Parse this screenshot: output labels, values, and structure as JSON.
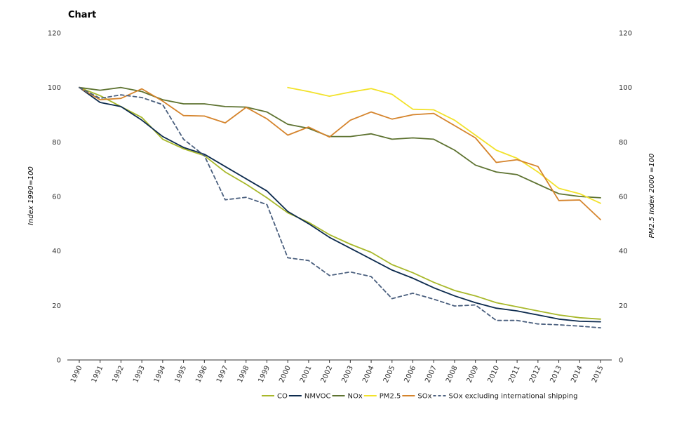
{
  "chart_data": {
    "type": "line",
    "title": "Chart",
    "ylabel_left": "Index 1990=100",
    "ylabel_right": "PM2.5 Index 2000 =100",
    "ylim": [
      0,
      120
    ],
    "yticks": [
      0,
      20,
      40,
      60,
      80,
      100,
      120
    ],
    "x": [
      "1990",
      "1991",
      "1992",
      "1993",
      "1994",
      "1995",
      "1996",
      "1997",
      "1998",
      "1999",
      "2000",
      "2001",
      "2002",
      "2003",
      "2004",
      "2005",
      "2006",
      "2007",
      "2008",
      "2009",
      "2010",
      "2011",
      "2012",
      "2013",
      "2014",
      "2015"
    ],
    "grid": false,
    "legend_position": "bottom",
    "series": [
      {
        "name": "CO",
        "color": "#a8b82a",
        "dash": false,
        "values": [
          100,
          97,
          93,
          89,
          81,
          77.5,
          75,
          69,
          64.5,
          59.5,
          54,
          50.5,
          46,
          42.5,
          39.5,
          35,
          32,
          28.5,
          25.5,
          23.5,
          21,
          19.5,
          18,
          16.5,
          15.5,
          15
        ]
      },
      {
        "name": "NMVOC",
        "color": "#0d2b4e",
        "dash": false,
        "values": [
          100,
          94.5,
          93,
          88,
          82,
          78,
          75.5,
          71,
          66.5,
          62,
          54.5,
          50,
          45,
          41,
          37,
          33,
          30,
          26.5,
          23.5,
          21,
          19,
          18,
          16.5,
          15,
          14.2,
          14
        ]
      },
      {
        "name": "NOx",
        "color": "#5e7331",
        "dash": false,
        "values": [
          100,
          99,
          100,
          98.5,
          95.5,
          94,
          94,
          93,
          92.8,
          91,
          86.5,
          85,
          82,
          82,
          83,
          81,
          81.5,
          81,
          77,
          71.5,
          69,
          68,
          64.5,
          61,
          60,
          59.5
        ]
      },
      {
        "name": "PM2.5",
        "color": "#f2e22b",
        "dash": false,
        "values": [
          null,
          null,
          null,
          null,
          null,
          null,
          null,
          null,
          null,
          null,
          100,
          98.5,
          96.8,
          98.3,
          99.6,
          97.5,
          92,
          91.8,
          88,
          82.5,
          77,
          74,
          69,
          63,
          61,
          57.5
        ]
      },
      {
        "name": "SOx",
        "color": "#d5842c",
        "dash": false,
        "values": [
          100,
          95.5,
          96,
          99.5,
          95,
          89.7,
          89.5,
          87,
          92.7,
          88.5,
          82.5,
          85.5,
          81.8,
          88,
          91,
          88.4,
          90,
          90.5,
          86,
          81.5,
          72.5,
          73.5,
          71,
          58.5,
          58.7,
          51.5
        ]
      },
      {
        "name": "SOx excluding international shipping",
        "color": "#4a5f7e",
        "dash": true,
        "values": [
          100,
          96,
          97.3,
          96.3,
          93.7,
          81,
          75,
          58.8,
          59.7,
          57,
          37.5,
          36.5,
          31,
          32.3,
          30.6,
          22.5,
          24.5,
          22.3,
          19.8,
          20.2,
          14.5,
          14.5,
          13.2,
          12.9,
          12.4,
          11.8
        ]
      }
    ]
  }
}
